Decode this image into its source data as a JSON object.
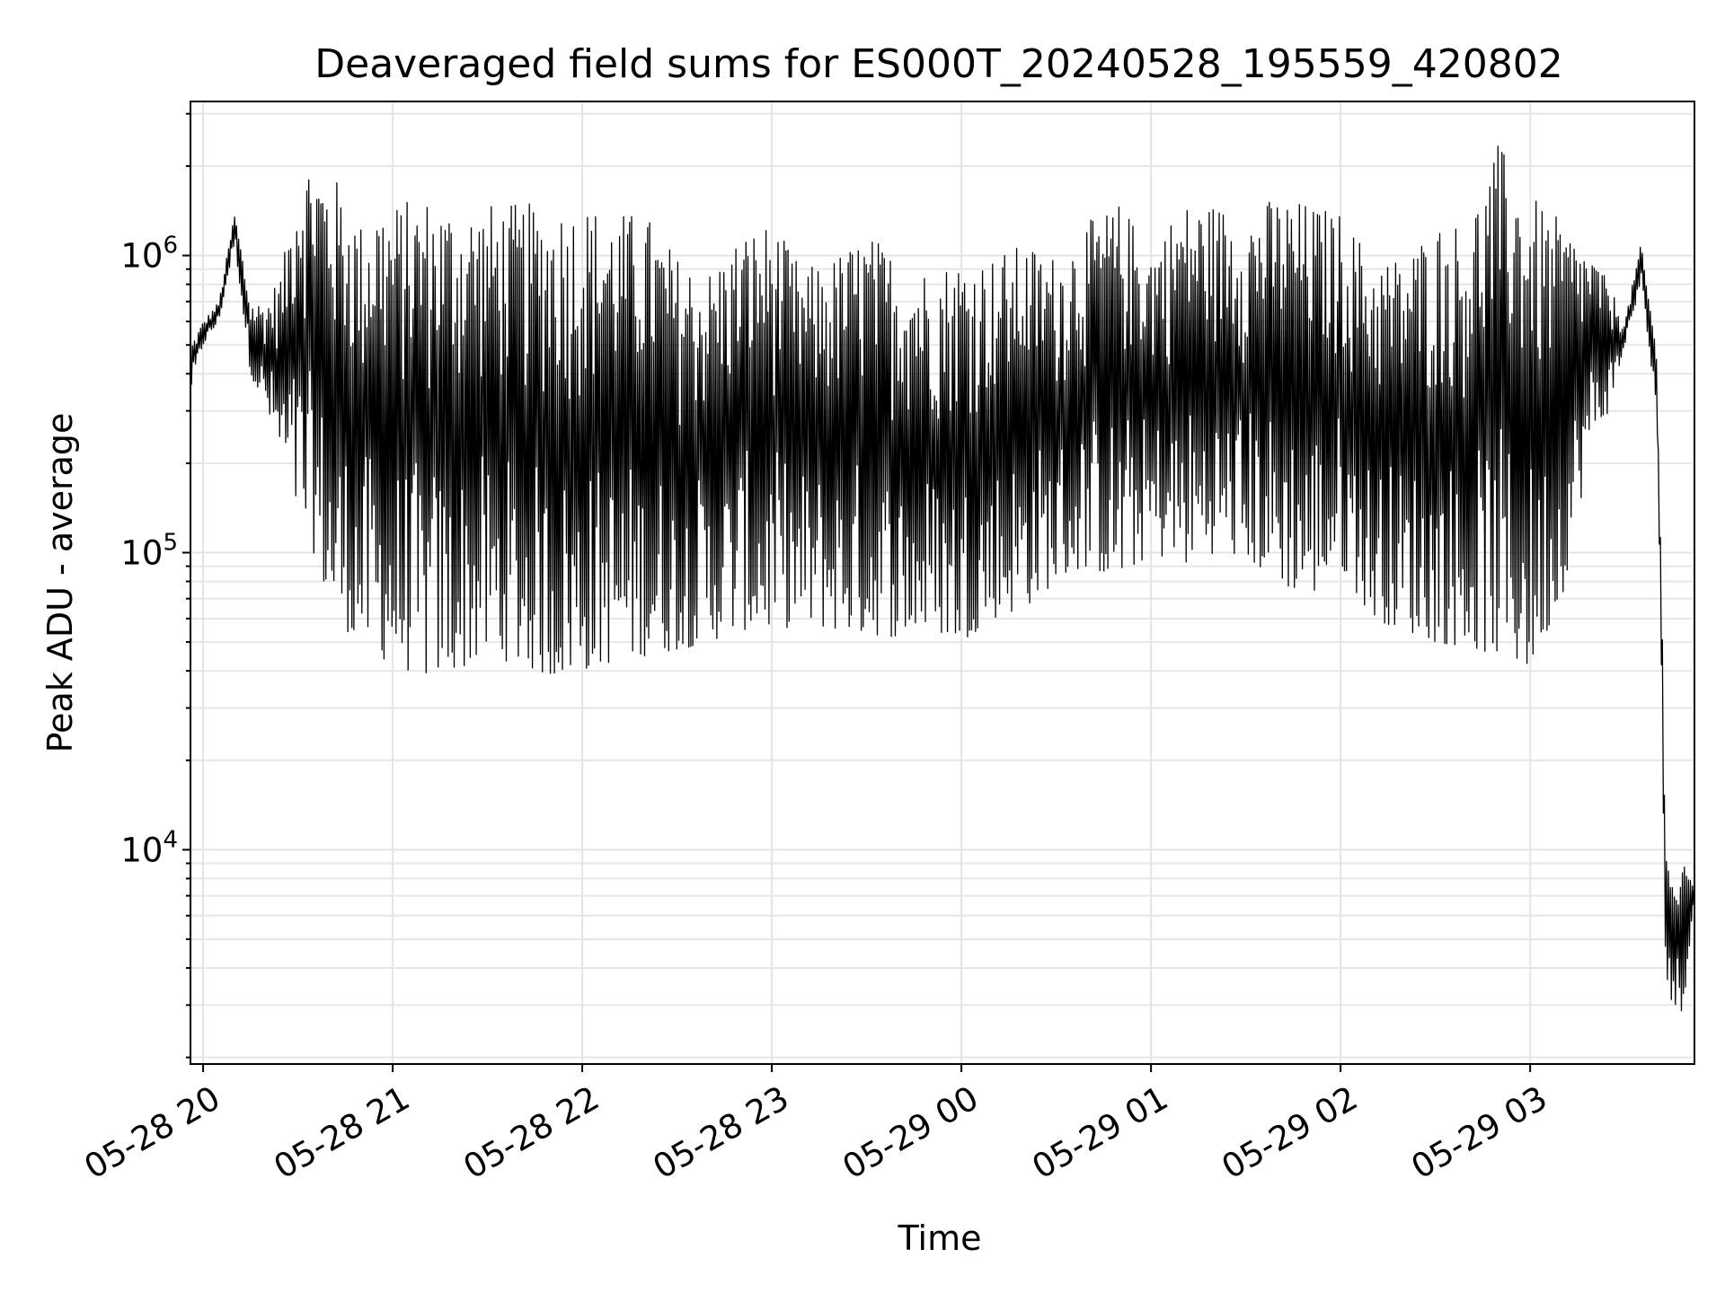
{
  "chart_data": {
    "type": "line",
    "title": "Deaveraged field sums for ES000T_20240528_195559_420802",
    "xlabel": "Time",
    "ylabel": "Peak ADU - average",
    "yscale": "log",
    "grid": "on",
    "xlim": [
      "2024-05-28T19:56",
      "2024-05-29T03:52"
    ],
    "ylim": [
      1900,
      3300000
    ],
    "x_ticks": [
      {
        "value": "2024-05-28T20:00",
        "label": "05-28 20"
      },
      {
        "value": "2024-05-28T21:00",
        "label": "05-28 21"
      },
      {
        "value": "2024-05-28T22:00",
        "label": "05-28 22"
      },
      {
        "value": "2024-05-28T23:00",
        "label": "05-28 23"
      },
      {
        "value": "2024-05-29T00:00",
        "label": "05-29 00"
      },
      {
        "value": "2024-05-29T01:00",
        "label": "05-29 01"
      },
      {
        "value": "2024-05-29T02:00",
        "label": "05-29 02"
      },
      {
        "value": "2024-05-29T03:00",
        "label": "05-29 03"
      }
    ],
    "y_ticks": [
      {
        "value": 10000,
        "base": "10",
        "exp": "4"
      },
      {
        "value": 100000,
        "base": "10",
        "exp": "5"
      },
      {
        "value": 1000000,
        "base": "10",
        "exp": "6"
      }
    ],
    "series": [
      {
        "color": "#000000",
        "x": [
          "2024-05-28T19:56",
          "2024-05-28T20:00",
          "2024-05-28T20:05",
          "2024-05-28T20:10",
          "2024-05-28T20:15",
          "2024-05-28T20:20",
          "2024-05-28T20:25",
          "2024-05-28T20:30",
          "2024-05-28T20:35",
          "2024-05-28T20:40",
          "2024-05-28T20:45",
          "2024-05-28T20:50",
          "2024-05-28T20:55",
          "2024-05-28T21:00",
          "2024-05-28T21:10",
          "2024-05-28T21:20",
          "2024-05-28T21:30",
          "2024-05-28T21:40",
          "2024-05-28T21:50",
          "2024-05-28T22:00",
          "2024-05-28T22:10",
          "2024-05-28T22:20",
          "2024-05-28T22:30",
          "2024-05-28T22:40",
          "2024-05-28T22:50",
          "2024-05-28T23:00",
          "2024-05-28T23:10",
          "2024-05-28T23:20",
          "2024-05-28T23:30",
          "2024-05-28T23:40",
          "2024-05-28T23:50",
          "2024-05-29T00:00",
          "2024-05-29T00:10",
          "2024-05-29T00:20",
          "2024-05-29T00:30",
          "2024-05-29T00:40",
          "2024-05-29T00:50",
          "2024-05-29T01:00",
          "2024-05-29T01:10",
          "2024-05-29T01:20",
          "2024-05-29T01:30",
          "2024-05-29T01:40",
          "2024-05-29T01:50",
          "2024-05-29T02:00",
          "2024-05-29T02:10",
          "2024-05-29T02:20",
          "2024-05-29T02:30",
          "2024-05-29T02:40",
          "2024-05-29T02:50",
          "2024-05-29T03:00",
          "2024-05-29T03:10",
          "2024-05-29T03:20",
          "2024-05-29T03:25",
          "2024-05-29T03:30",
          "2024-05-29T03:35",
          "2024-05-29T03:40",
          "2024-05-29T03:43",
          "2024-05-29T03:45",
          "2024-05-29T03:48",
          "2024-05-29T03:52"
        ],
        "upper": [
          500000,
          600000,
          700000,
          1400000,
          700000,
          700000,
          900000,
          2000000,
          2200000,
          1900000,
          1700000,
          1300000,
          1600000,
          1500000,
          1600000,
          1500000,
          1500000,
          1500000,
          1500000,
          1500000,
          1400000,
          1400000,
          1000000,
          900000,
          1200000,
          1300000,
          900000,
          1000000,
          1200000,
          1000000,
          900000,
          1000000,
          1000000,
          1100000,
          1000000,
          1300000,
          1500000,
          1100000,
          1500000,
          1500000,
          1400000,
          1600000,
          1500000,
          1400000,
          1000000,
          1000000,
          1300000,
          1300000,
          2400000,
          1600000,
          1300000,
          1000000,
          800000,
          600000,
          1100000,
          500000,
          14000,
          8000,
          9000,
          8000
        ],
        "lower": [
          350000,
          500000,
          600000,
          1100000,
          400000,
          300000,
          200000,
          130000,
          100000,
          65000,
          55000,
          50000,
          45000,
          42000,
          38000,
          40000,
          45000,
          42000,
          38000,
          40000,
          43000,
          45000,
          47000,
          50000,
          55000,
          55000,
          57000,
          55000,
          53000,
          52000,
          55000,
          50000,
          60000,
          65000,
          80000,
          90000,
          80000,
          100000,
          90000,
          100000,
          95000,
          80000,
          70000,
          90000,
          60000,
          55000,
          50000,
          48000,
          45000,
          40000,
          70000,
          250000,
          300000,
          500000,
          800000,
          300000,
          3500,
          3000,
          2600,
          7000
        ]
      }
    ]
  }
}
